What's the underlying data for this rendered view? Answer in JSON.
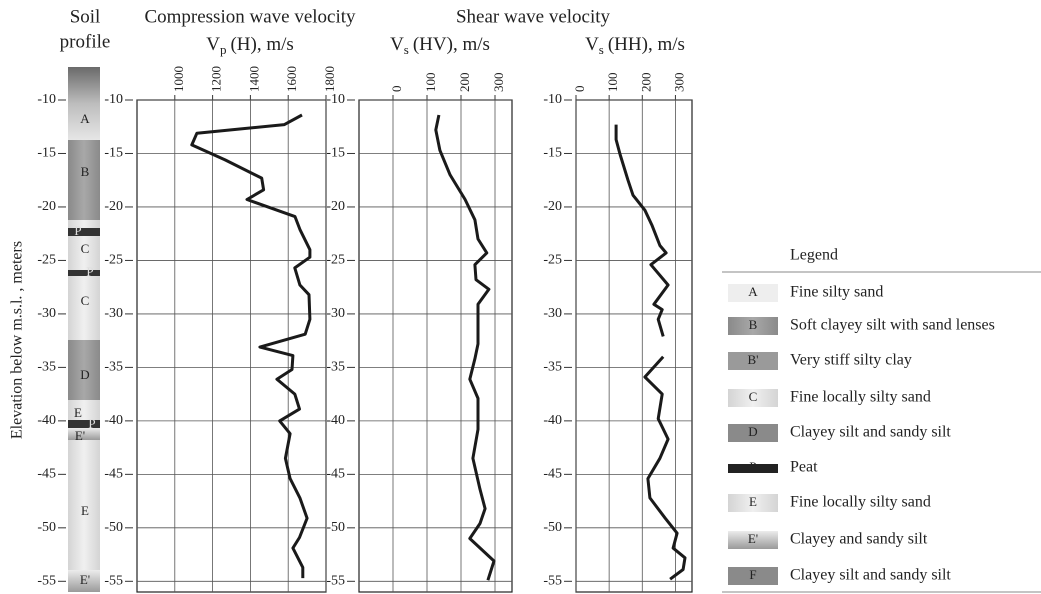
{
  "chart_data": [
    {
      "type": "line",
      "title": "Compression wave velocity",
      "xlabel": {
        "symbol": "V",
        "subscript": "p",
        "text": "(H), m/s"
      },
      "xlim": [
        800,
        1800
      ],
      "xticks": [
        1000,
        1200,
        1400,
        1600,
        1800
      ],
      "ylim": [
        -10,
        -56
      ],
      "yticks": [
        -10,
        -15,
        -20,
        -25,
        -30,
        -35,
        -40,
        -45,
        -50,
        -55
      ],
      "grid": true,
      "series": [
        {
          "color": "#1a1a1a",
          "values": [
            1673,
            1580,
            1117,
            1090,
            1266,
            1460,
            1470,
            1382,
            1636,
            1662,
            1715,
            1715,
            1635,
            1662,
            1710,
            1715,
            1690,
            1450,
            1625,
            1620,
            1540,
            1635,
            1660,
            1555,
            1610,
            1585,
            1610,
            1662,
            1700,
            1660,
            1625,
            1677,
            1677
          ],
          "y": [
            -11.4,
            -12.3,
            -13.1,
            -14.2,
            -15.6,
            -17.3,
            -18.4,
            -19.3,
            -20.9,
            -22.1,
            -24,
            -24.7,
            -25.7,
            -27.3,
            -28.2,
            -30.5,
            -31.9,
            -33.1,
            -33.9,
            -35.2,
            -36.1,
            -37.5,
            -38.9,
            -40,
            -41.2,
            -43.5,
            -45.4,
            -47.2,
            -49.1,
            -50.9,
            -51.9,
            -53.7,
            -54.7
          ]
        }
      ]
    },
    {
      "type": "line",
      "xlabel": {
        "symbol": "V",
        "subscript": "s",
        "text": "(HV), m/s"
      },
      "xlim": [
        -100,
        350
      ],
      "xticks": [
        0,
        100,
        200,
        300
      ],
      "ylim": [
        -10,
        -56
      ],
      "yticks": [
        -10,
        -15,
        -20,
        -25,
        -30,
        -35,
        -40,
        -45,
        -50,
        -55
      ],
      "grid": true,
      "series": [
        {
          "color": "#1a1a1a",
          "values": [
            135,
            126,
            138,
            168,
            212,
            241,
            250,
            276,
            241,
            244,
            282,
            250,
            250,
            241,
            226,
            250,
            250,
            235,
            256,
            271,
            256,
            226,
            297,
            279
          ],
          "y": [
            -11.4,
            -12.8,
            -14.7,
            -17,
            -19.3,
            -21.2,
            -23,
            -24.3,
            -25.4,
            -26.8,
            -27.7,
            -29.1,
            -32.8,
            -34.2,
            -36.1,
            -37.9,
            -40.8,
            -43.5,
            -46.4,
            -48.2,
            -49.6,
            -51,
            -53.1,
            -54.9
          ]
        }
      ]
    },
    {
      "type": "line",
      "xlabel": {
        "symbol": "V",
        "subscript": "s",
        "text": "(HH), m/s"
      },
      "xlim": [
        0,
        350
      ],
      "xticks": [
        0,
        100,
        200,
        300
      ],
      "ylim": [
        -10,
        -56
      ],
      "yticks": [
        -10,
        -15,
        -20,
        -25,
        -30,
        -35,
        -40,
        -45,
        -50,
        -55
      ],
      "grid": true,
      "series": [
        {
          "color": "#1a1a1a",
          "values": [
            121,
            121,
            133,
            157,
            172,
            208,
            229,
            253,
            272,
            226,
            278,
            235,
            260,
            248,
            263,
            null,
            263,
            208,
            260,
            248,
            278,
            253,
            217,
            223,
            269,
            305,
            293,
            329,
            323,
            284
          ],
          "y": [
            -12.3,
            -13.7,
            -15.1,
            -17.5,
            -18.9,
            -20.3,
            -21.7,
            -23.6,
            -24.3,
            -25.4,
            -27.3,
            -29.1,
            -29.6,
            -30.5,
            -32.1,
            null,
            -34,
            -35.9,
            -37.5,
            -39.8,
            -41.7,
            -43.5,
            -45.4,
            -47.2,
            -49.1,
            -50.5,
            -51.9,
            -52.8,
            -53.9,
            -54.8
          ]
        }
      ]
    }
  ],
  "group_title": "Shear wave velocity",
  "ylabel": "Elevation below m.s.l. , meters",
  "soil_profile": {
    "title": [
      "Soil",
      "profile"
    ],
    "labels": [
      "A",
      "B",
      "P",
      "C",
      "P",
      "C",
      "D",
      "E",
      "P",
      "E'",
      "E",
      "E'"
    ]
  },
  "legend": {
    "title": "Legend",
    "entries": [
      {
        "key": "A",
        "label": "Fine silty sand"
      },
      {
        "key": "B",
        "label": "Soft clayey silt with sand lenses"
      },
      {
        "key": "B'",
        "label": "Very stiff silty clay"
      },
      {
        "key": "C",
        "label": "Fine locally silty sand"
      },
      {
        "key": "D",
        "label": "Clayey silt and sandy silt"
      },
      {
        "key": "P",
        "label": "Peat"
      },
      {
        "key": "E",
        "label": "Fine locally silty sand"
      },
      {
        "key": "E'",
        "label": "Clayey and sandy silt"
      },
      {
        "key": "F",
        "label": "Clayey silt and sandy silt"
      }
    ]
  }
}
